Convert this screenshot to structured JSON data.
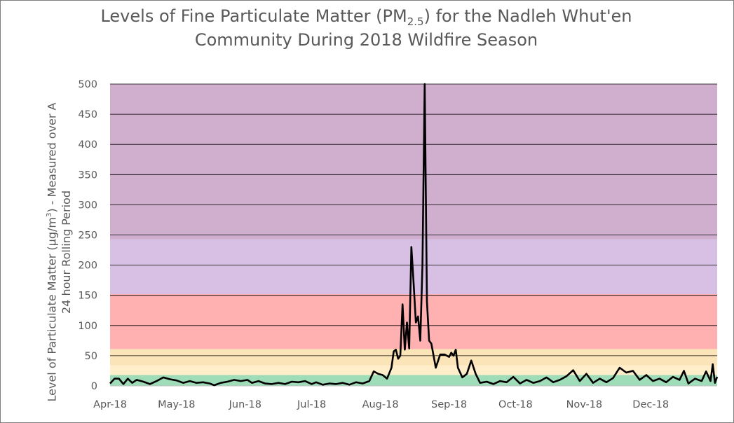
{
  "chart_data": {
    "type": "line",
    "title": {
      "line1_before": "Levels of Fine Particulate Matter (PM",
      "subscript": "2.5",
      "line1_after": ") for the Nadleh Whut'en",
      "line2": "Community During 2018 Wildfire Season"
    },
    "ylabel": {
      "line1_before": "Level of Particulate Matter (µg/m",
      "superscript": "3",
      "line1_after": ") - Measured over A",
      "line2": "24 hour Rolling Period"
    },
    "xlabel": "",
    "ylim": [
      0,
      500
    ],
    "yticks": [
      0,
      50,
      100,
      150,
      200,
      250,
      300,
      350,
      400,
      450,
      500
    ],
    "xticks": [
      "Apr-18",
      "May-18",
      "Jun-18",
      "Jul-18",
      "Aug-18",
      "Sep-18",
      "Oct-18",
      "Nov-18",
      "Dec-18"
    ],
    "x_start": "2018-04-01",
    "x_end": "2018-12-31",
    "grid": "horizontal",
    "background_bands": [
      {
        "from": 0,
        "to": 18,
        "color": "#9fdcb8"
      },
      {
        "from": 18,
        "to": 34,
        "color": "#ffeec9"
      },
      {
        "from": 34,
        "to": 61,
        "color": "#fbe4b7"
      },
      {
        "from": 61,
        "to": 152,
        "color": "#ffb0b0"
      },
      {
        "from": 152,
        "to": 243,
        "color": "#d8bfe4"
      },
      {
        "from": 243,
        "to": 500,
        "color": "#d0afce"
      }
    ],
    "series": [
      {
        "color": "#000000",
        "points": [
          [
            "2018-04-01",
            4
          ],
          [
            "2018-04-03",
            12
          ],
          [
            "2018-04-05",
            12
          ],
          [
            "2018-04-07",
            3
          ],
          [
            "2018-04-09",
            12
          ],
          [
            "2018-04-11",
            5
          ],
          [
            "2018-04-13",
            10
          ],
          [
            "2018-04-16",
            7
          ],
          [
            "2018-04-19",
            3
          ],
          [
            "2018-04-22",
            8
          ],
          [
            "2018-04-25",
            14
          ],
          [
            "2018-04-28",
            11
          ],
          [
            "2018-05-01",
            9
          ],
          [
            "2018-05-04",
            5
          ],
          [
            "2018-05-07",
            8
          ],
          [
            "2018-05-10",
            5
          ],
          [
            "2018-05-13",
            6
          ],
          [
            "2018-05-16",
            4
          ],
          [
            "2018-05-18",
            1
          ],
          [
            "2018-05-21",
            5
          ],
          [
            "2018-05-24",
            7
          ],
          [
            "2018-05-27",
            10
          ],
          [
            "2018-05-30",
            8
          ],
          [
            "2018-06-02",
            10
          ],
          [
            "2018-06-04",
            5
          ],
          [
            "2018-06-07",
            8
          ],
          [
            "2018-06-10",
            4
          ],
          [
            "2018-06-13",
            3
          ],
          [
            "2018-06-16",
            5
          ],
          [
            "2018-06-19",
            3
          ],
          [
            "2018-06-22",
            7
          ],
          [
            "2018-06-25",
            6
          ],
          [
            "2018-06-28",
            8
          ],
          [
            "2018-07-01",
            3
          ],
          [
            "2018-07-03",
            6
          ],
          [
            "2018-07-06",
            2
          ],
          [
            "2018-07-09",
            4
          ],
          [
            "2018-07-12",
            3
          ],
          [
            "2018-07-15",
            5
          ],
          [
            "2018-07-18",
            2
          ],
          [
            "2018-07-21",
            6
          ],
          [
            "2018-07-24",
            4
          ],
          [
            "2018-07-27",
            8
          ],
          [
            "2018-07-29",
            24
          ],
          [
            "2018-07-31",
            20
          ],
          [
            "2018-08-02",
            18
          ],
          [
            "2018-08-04",
            12
          ],
          [
            "2018-08-06",
            30
          ],
          [
            "2018-08-07",
            57
          ],
          [
            "2018-08-08",
            60
          ],
          [
            "2018-08-09",
            45
          ],
          [
            "2018-08-10",
            50
          ],
          [
            "2018-08-11",
            135
          ],
          [
            "2018-08-12",
            60
          ],
          [
            "2018-08-13",
            105
          ],
          [
            "2018-08-14",
            62
          ],
          [
            "2018-08-15",
            230
          ],
          [
            "2018-08-16",
            170
          ],
          [
            "2018-08-17",
            105
          ],
          [
            "2018-08-18",
            115
          ],
          [
            "2018-08-19",
            75
          ],
          [
            "2018-08-20",
            200
          ],
          [
            "2018-08-21",
            500
          ],
          [
            "2018-08-22",
            140
          ],
          [
            "2018-08-23",
            75
          ],
          [
            "2018-08-24",
            70
          ],
          [
            "2018-08-26",
            30
          ],
          [
            "2018-08-28",
            52
          ],
          [
            "2018-08-30",
            52
          ],
          [
            "2018-09-01",
            48
          ],
          [
            "2018-09-02",
            55
          ],
          [
            "2018-09-03",
            50
          ],
          [
            "2018-09-04",
            60
          ],
          [
            "2018-09-05",
            30
          ],
          [
            "2018-09-07",
            14
          ],
          [
            "2018-09-09",
            20
          ],
          [
            "2018-09-11",
            42
          ],
          [
            "2018-09-13",
            20
          ],
          [
            "2018-09-15",
            5
          ],
          [
            "2018-09-18",
            7
          ],
          [
            "2018-09-21",
            3
          ],
          [
            "2018-09-24",
            8
          ],
          [
            "2018-09-27",
            6
          ],
          [
            "2018-09-30",
            15
          ],
          [
            "2018-10-03",
            4
          ],
          [
            "2018-10-06",
            10
          ],
          [
            "2018-10-09",
            5
          ],
          [
            "2018-10-12",
            8
          ],
          [
            "2018-10-15",
            14
          ],
          [
            "2018-10-18",
            6
          ],
          [
            "2018-10-21",
            10
          ],
          [
            "2018-10-24",
            16
          ],
          [
            "2018-10-27",
            26
          ],
          [
            "2018-10-30",
            8
          ],
          [
            "2018-11-02",
            20
          ],
          [
            "2018-11-05",
            5
          ],
          [
            "2018-11-08",
            12
          ],
          [
            "2018-11-11",
            6
          ],
          [
            "2018-11-14",
            13
          ],
          [
            "2018-11-17",
            30
          ],
          [
            "2018-11-20",
            22
          ],
          [
            "2018-11-23",
            25
          ],
          [
            "2018-11-26",
            10
          ],
          [
            "2018-11-29",
            18
          ],
          [
            "2018-12-02",
            8
          ],
          [
            "2018-12-05",
            12
          ],
          [
            "2018-12-08",
            6
          ],
          [
            "2018-12-11",
            15
          ],
          [
            "2018-12-14",
            10
          ],
          [
            "2018-12-16",
            25
          ],
          [
            "2018-12-18",
            4
          ],
          [
            "2018-12-21",
            12
          ],
          [
            "2018-12-24",
            8
          ],
          [
            "2018-12-26",
            24
          ],
          [
            "2018-12-28",
            8
          ],
          [
            "2018-12-29",
            36
          ],
          [
            "2018-12-30",
            5
          ],
          [
            "2018-12-31",
            15
          ]
        ]
      }
    ]
  }
}
